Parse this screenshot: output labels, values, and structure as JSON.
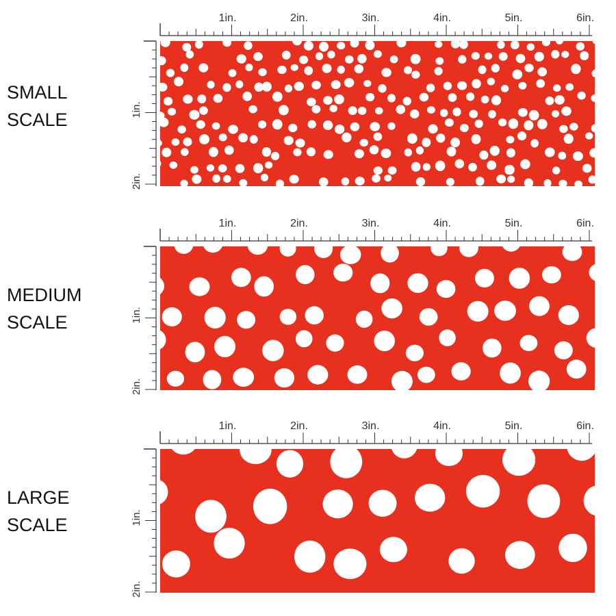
{
  "colors": {
    "fabric": "#e8301f",
    "dot": "#ffffff",
    "ruler": "#333333"
  },
  "ruler": {
    "horizontal_labels": [
      "1in.",
      "2in.",
      "3in.",
      "4in.",
      "5in.",
      "6in."
    ],
    "vertical_labels": [
      "1in.",
      "2in."
    ]
  },
  "swatches": [
    {
      "label": "SMALL\nSCALE",
      "scale": "small"
    },
    {
      "label": "MEDIUM\nSCALE",
      "scale": "medium"
    },
    {
      "label": "LARGE\nSCALE",
      "scale": "large"
    }
  ]
}
